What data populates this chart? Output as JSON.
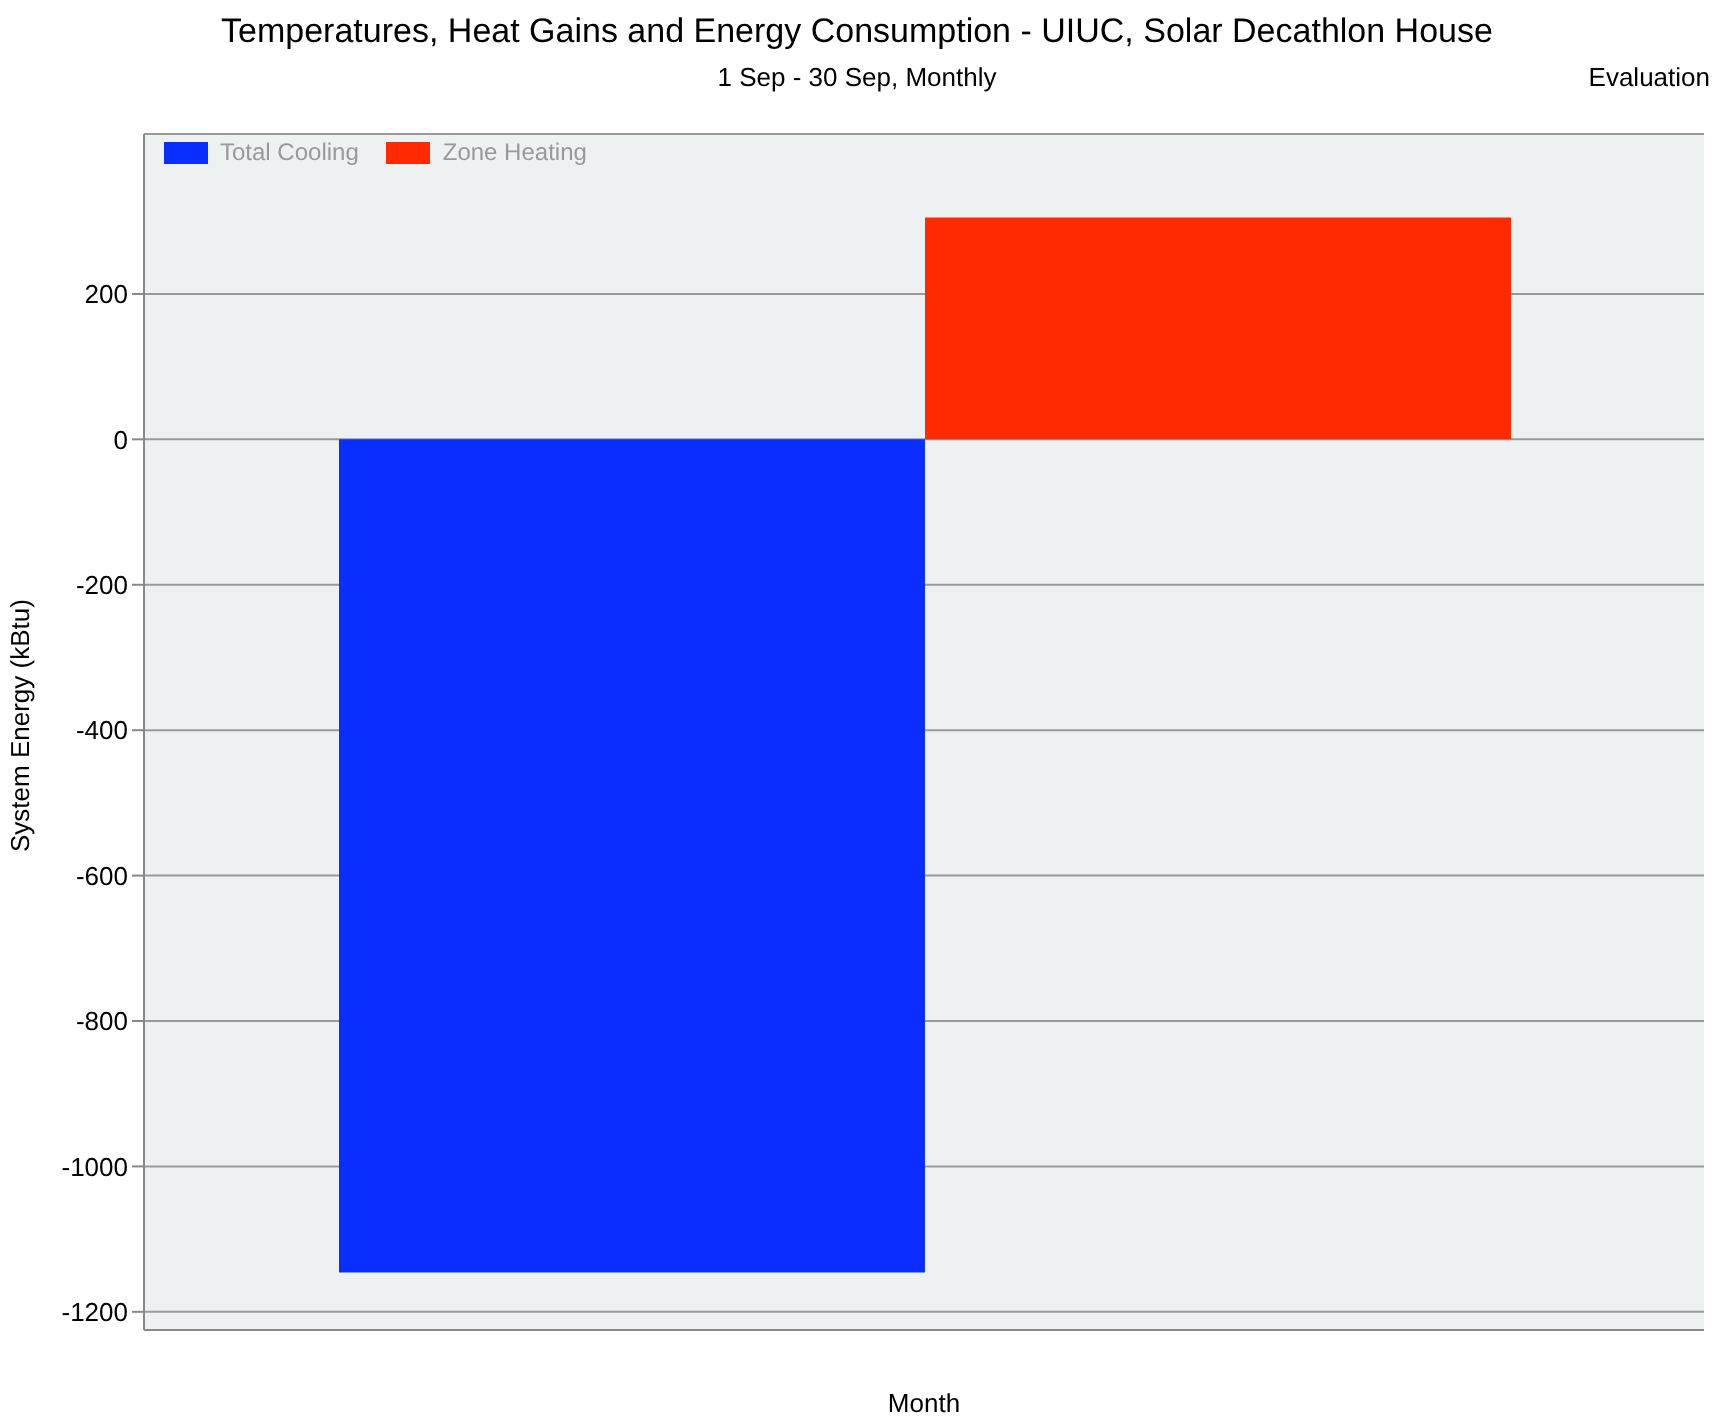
{
  "chart_data": {
    "type": "bar",
    "title": "Temperatures, Heat Gains and Energy Consumption - UIUC, Solar Decathlon House",
    "subtitle": "1 Sep - 30 Sep, Monthly",
    "annotations": [
      "Evaluation"
    ],
    "xlabel": "Month",
    "ylabel": "System Energy (kBtu)",
    "categories": [
      null
    ],
    "series": [
      {
        "name": "Total Cooling",
        "color": "#0a2eff",
        "values": [
          -1146
        ]
      },
      {
        "name": "Zone Heating",
        "color": "#ff2a00",
        "values": [
          305
        ]
      }
    ],
    "ylim": [
      -1225,
      420
    ],
    "yticks": [
      -1200,
      -1000,
      -800,
      -600,
      -400,
      -200,
      0,
      200
    ],
    "grid": "y",
    "legend": "top left"
  }
}
